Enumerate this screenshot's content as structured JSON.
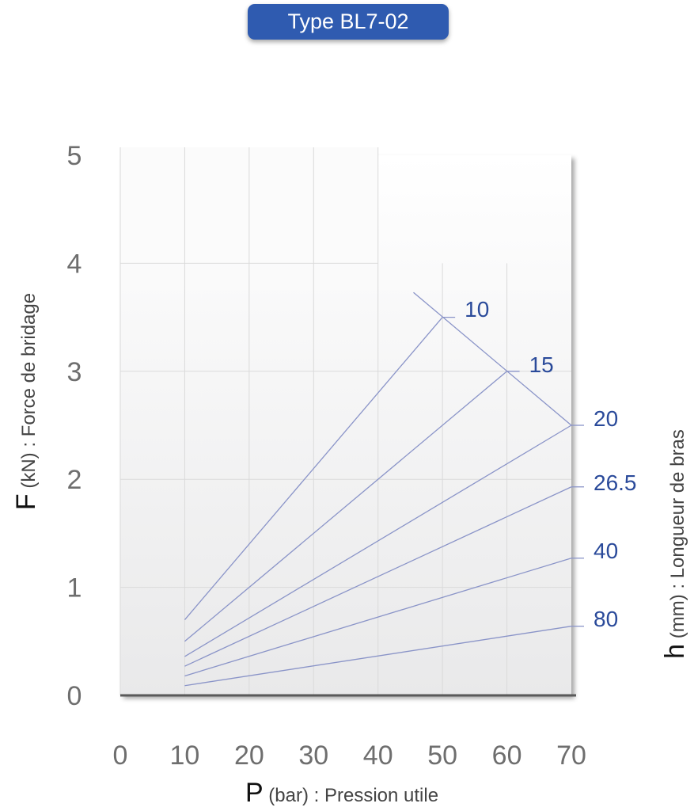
{
  "header": {
    "title": "Type BL7-02"
  },
  "chart_data": {
    "type": "line",
    "xlabel": {
      "symbol": "P",
      "text": "(bar) : Pression utile"
    },
    "ylabel": {
      "symbol": "F",
      "text": "(kN) : Force de bridage"
    },
    "rlabel": {
      "symbol": "h",
      "text": "(mm) : Longueur de bras"
    },
    "xticks": [
      "0",
      "10",
      "20",
      "30",
      "40",
      "50",
      "60",
      "70"
    ],
    "yticks": [
      "0",
      "1",
      "2",
      "3",
      "4",
      "5"
    ],
    "xlim": [
      0,
      70
    ],
    "ylim": [
      0,
      5
    ],
    "grid": true,
    "line_color": "#8a94c8",
    "label_color": "#2a4a9a",
    "series": [
      {
        "name": "10",
        "x": [
          10,
          50
        ],
        "y": [
          0.7,
          3.5
        ]
      },
      {
        "name": "15",
        "x": [
          10,
          60
        ],
        "y": [
          0.5,
          3.0
        ]
      },
      {
        "name": "20",
        "x": [
          10,
          70
        ],
        "y": [
          0.36,
          2.5
        ]
      },
      {
        "name": "26.5",
        "x": [
          10,
          70
        ],
        "y": [
          0.27,
          1.93
        ]
      },
      {
        "name": "40",
        "x": [
          10,
          70
        ],
        "y": [
          0.18,
          1.27
        ]
      },
      {
        "name": "80",
        "x": [
          10,
          70
        ],
        "y": [
          0.09,
          0.64
        ]
      }
    ],
    "limit_line": {
      "x": [
        45.5,
        70
      ],
      "y": [
        3.73,
        2.5
      ]
    }
  }
}
